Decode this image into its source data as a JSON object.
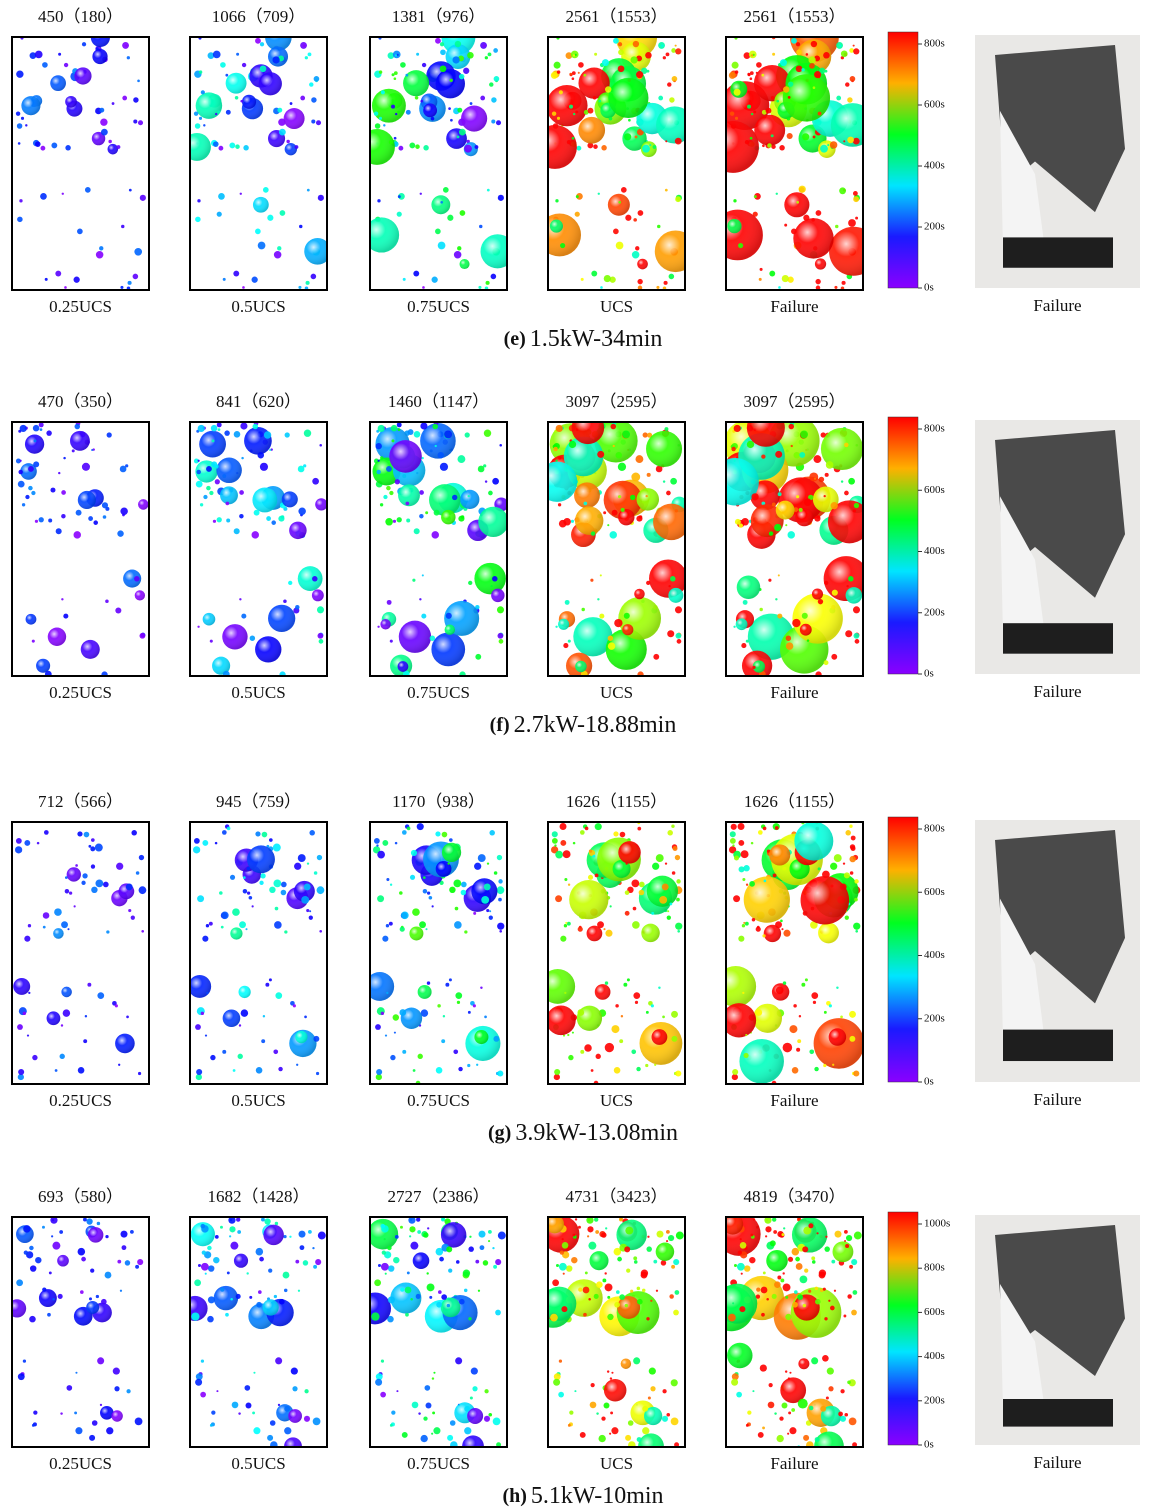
{
  "rows": [
    {
      "letter": "(e)",
      "caption": "1.5kW-34min",
      "panels": [
        {
          "count": "450（180）",
          "stage": "0.25UCS"
        },
        {
          "count": "1066（709）",
          "stage": "0.5UCS"
        },
        {
          "count": "1381（976）",
          "stage": "0.75UCS"
        },
        {
          "count": "2561（1553）",
          "stage": "UCS"
        },
        {
          "count": "2561（1553）",
          "stage": "Failure"
        }
      ],
      "colorbar": [
        "0s",
        "200s",
        "400s",
        "600s",
        "800s"
      ],
      "photo_label": "Failure"
    },
    {
      "letter": "(f)",
      "caption": "2.7kW-18.88min",
      "panels": [
        {
          "count": "470（350）",
          "stage": "0.25UCS"
        },
        {
          "count": "841（620）",
          "stage": "0.5UCS"
        },
        {
          "count": "1460（1147）",
          "stage": "0.75UCS"
        },
        {
          "count": "3097（2595）",
          "stage": "UCS"
        },
        {
          "count": "3097（2595）",
          "stage": "Failure"
        }
      ],
      "colorbar": [
        "0s",
        "200s",
        "400s",
        "600s",
        "800s"
      ],
      "photo_label": "Failure"
    },
    {
      "letter": "(g)",
      "caption": "3.9kW-13.08min",
      "panels": [
        {
          "count": "712（566）",
          "stage": "0.25UCS"
        },
        {
          "count": "945（759）",
          "stage": "0.5UCS"
        },
        {
          "count": "1170（938）",
          "stage": "0.75UCS"
        },
        {
          "count": "1626（1155）",
          "stage": "UCS"
        },
        {
          "count": "1626（1155）",
          "stage": "Failure"
        }
      ],
      "colorbar": [
        "0s",
        "200s",
        "400s",
        "600s",
        "800s"
      ],
      "photo_label": "Failure"
    },
    {
      "letter": "(h)",
      "caption": "5.1kW-10min",
      "panels": [
        {
          "count": "693（580）",
          "stage": "0.25UCS"
        },
        {
          "count": "1682（1428）",
          "stage": "0.5UCS"
        },
        {
          "count": "2727（2386）",
          "stage": "0.75UCS"
        },
        {
          "count": "4731（3423）",
          "stage": "UCS"
        },
        {
          "count": "4819（3470）",
          "stage": "Failure"
        }
      ],
      "colorbar": [
        "0s",
        "200s",
        "400s",
        "600s",
        "800s",
        "1000s"
      ],
      "photo_label": "Failure"
    }
  ]
}
